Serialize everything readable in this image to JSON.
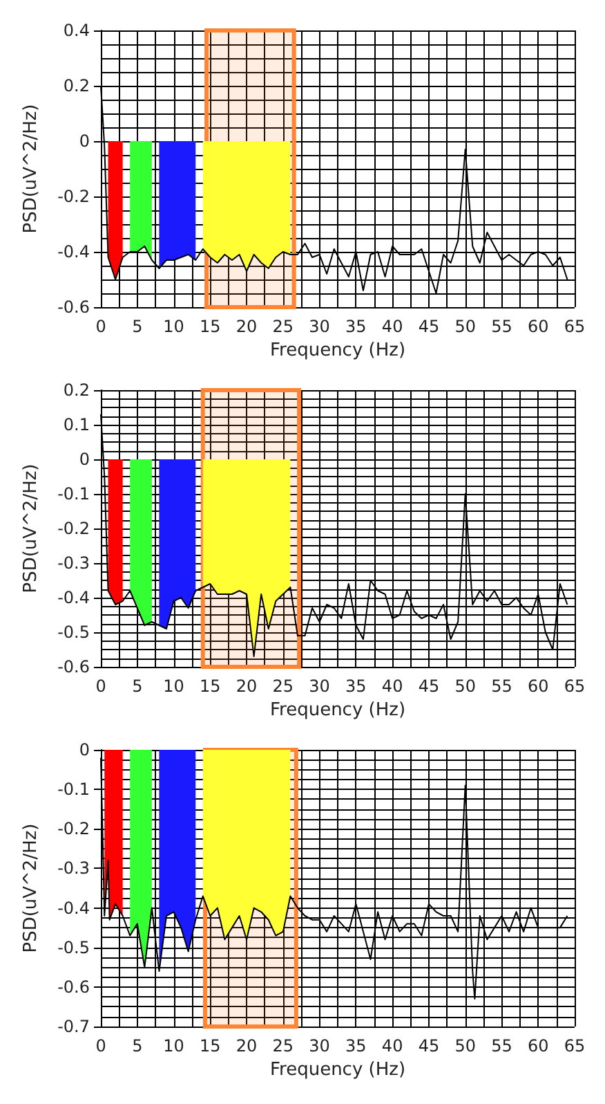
{
  "chart_data": [
    {
      "type": "line",
      "xlabel": "Frequency (Hz)",
      "ylabel": "PSD(uV^2/Hz)",
      "xlim": [
        0,
        65
      ],
      "xticks": [
        0,
        5,
        10,
        15,
        20,
        25,
        30,
        35,
        40,
        45,
        50,
        55,
        60,
        65
      ],
      "ylim": [
        -0.6,
        0.4
      ],
      "yticks": [
        -0.6,
        -0.4,
        -0.2,
        0,
        0.2,
        0.4
      ],
      "grid": true,
      "bands": [
        {
          "axis": "x",
          "from": 14.5,
          "to": 26.5,
          "color": "#ff8533"
        }
      ],
      "series": [
        {
          "type": "area",
          "color": "#ff0000",
          "x": [
            1,
            2,
            3
          ],
          "values": [
            -0.42,
            -0.5,
            -0.42
          ]
        },
        {
          "type": "area",
          "color": "#33ff33",
          "x": [
            4,
            5,
            6,
            7
          ],
          "values": [
            -0.4,
            -0.4,
            -0.38,
            -0.43
          ]
        },
        {
          "type": "area",
          "color": "#1a1aff",
          "x": [
            8,
            9,
            10,
            11,
            12,
            13
          ],
          "values": [
            -0.46,
            -0.43,
            -0.43,
            -0.42,
            -0.41,
            -0.43
          ]
        },
        {
          "type": "area",
          "color": "#ffff33",
          "x": [
            14,
            15,
            16,
            17,
            18,
            19,
            20,
            21,
            22,
            23,
            24,
            25,
            26
          ],
          "values": [
            -0.39,
            -0.42,
            -0.44,
            -0.41,
            -0.43,
            -0.41,
            -0.47,
            -0.41,
            -0.44,
            -0.46,
            -0.42,
            -0.4,
            -0.41
          ]
        },
        {
          "color": "#000000",
          "x": [
            0,
            0.5,
            1,
            2,
            3,
            4,
            5,
            6,
            7,
            8,
            9,
            10,
            11,
            12,
            13,
            14,
            15,
            16,
            17,
            18,
            19,
            20,
            21,
            22,
            23,
            24,
            25,
            26,
            27,
            28,
            29,
            30,
            31,
            32,
            33,
            34,
            35,
            36,
            37,
            38,
            39,
            40,
            41,
            42,
            43,
            44,
            45,
            46,
            47,
            48,
            49,
            50,
            51,
            52,
            53,
            54,
            55,
            56,
            57,
            58,
            59,
            60,
            61,
            62,
            63,
            64
          ],
          "values": [
            0.2,
            -0.02,
            -0.42,
            -0.5,
            -0.42,
            -0.4,
            -0.4,
            -0.38,
            -0.43,
            -0.46,
            -0.43,
            -0.43,
            -0.42,
            -0.41,
            -0.43,
            -0.39,
            -0.42,
            -0.44,
            -0.41,
            -0.43,
            -0.41,
            -0.47,
            -0.41,
            -0.44,
            -0.46,
            -0.42,
            -0.4,
            -0.41,
            -0.41,
            -0.37,
            -0.42,
            -0.41,
            -0.48,
            -0.39,
            -0.44,
            -0.49,
            -0.4,
            -0.54,
            -0.41,
            -0.4,
            -0.49,
            -0.38,
            -0.41,
            -0.41,
            -0.41,
            -0.39,
            -0.47,
            -0.55,
            -0.41,
            -0.44,
            -0.36,
            -0.03,
            -0.38,
            -0.44,
            -0.33,
            -0.38,
            -0.43,
            -0.41,
            -0.43,
            -0.45,
            -0.41,
            -0.4,
            -0.41,
            -0.45,
            -0.42,
            -0.5
          ]
        }
      ]
    },
    {
      "type": "line",
      "xlabel": "Frequency (Hz)",
      "ylabel": "PSD(uV^2/Hz)",
      "xlim": [
        0,
        65
      ],
      "xticks": [
        0,
        5,
        10,
        15,
        20,
        25,
        30,
        35,
        40,
        45,
        50,
        55,
        60,
        65
      ],
      "ylim": [
        -0.6,
        0.2
      ],
      "yticks": [
        -0.6,
        -0.5,
        -0.4,
        -0.3,
        -0.2,
        -0.1,
        0,
        0.1,
        0.2
      ],
      "grid": true,
      "bands": [
        {
          "axis": "x",
          "from": 14,
          "to": 27.2,
          "color": "#ff8533"
        }
      ],
      "series": [
        {
          "type": "area",
          "color": "#ff0000",
          "x": [
            1,
            2,
            3
          ],
          "values": [
            -0.38,
            -0.42,
            -0.41
          ]
        },
        {
          "type": "area",
          "color": "#33ff33",
          "x": [
            4,
            5,
            6,
            7
          ],
          "values": [
            -0.38,
            -0.43,
            -0.48,
            -0.47
          ]
        },
        {
          "type": "area",
          "color": "#1a1aff",
          "x": [
            8,
            9,
            10,
            11,
            12,
            13
          ],
          "values": [
            -0.48,
            -0.49,
            -0.41,
            -0.4,
            -0.43,
            -0.38
          ]
        },
        {
          "type": "area",
          "color": "#ffff33",
          "x": [
            14,
            15,
            16,
            17,
            18,
            19,
            20,
            21,
            22,
            23,
            24,
            25,
            26
          ],
          "values": [
            -0.37,
            -0.36,
            -0.39,
            -0.39,
            -0.39,
            -0.38,
            -0.39,
            -0.57,
            -0.39,
            -0.49,
            -0.41,
            -0.39,
            -0.37
          ]
        },
        {
          "color": "#000000",
          "x": [
            0,
            0.5,
            1,
            2,
            3,
            4,
            5,
            6,
            7,
            8,
            9,
            10,
            11,
            12,
            13,
            14,
            15,
            16,
            17,
            18,
            19,
            20,
            21,
            22,
            23,
            24,
            25,
            26,
            27,
            28,
            29,
            30,
            31,
            32,
            33,
            34,
            35,
            36,
            37,
            38,
            39,
            40,
            41,
            42,
            43,
            44,
            45,
            46,
            47,
            48,
            49,
            50,
            51,
            52,
            53,
            54,
            55,
            56,
            57,
            58,
            59,
            60,
            61,
            62,
            63,
            64
          ],
          "values": [
            0.13,
            -0.05,
            -0.38,
            -0.42,
            -0.41,
            -0.38,
            -0.43,
            -0.48,
            -0.47,
            -0.48,
            -0.49,
            -0.41,
            -0.4,
            -0.43,
            -0.38,
            -0.37,
            -0.36,
            -0.39,
            -0.39,
            -0.39,
            -0.38,
            -0.39,
            -0.57,
            -0.39,
            -0.49,
            -0.41,
            -0.39,
            -0.37,
            -0.51,
            -0.51,
            -0.43,
            -0.47,
            -0.42,
            -0.43,
            -0.46,
            -0.36,
            -0.48,
            -0.52,
            -0.35,
            -0.38,
            -0.39,
            -0.46,
            -0.45,
            -0.38,
            -0.44,
            -0.46,
            -0.45,
            -0.46,
            -0.42,
            -0.52,
            -0.47,
            -0.1,
            -0.42,
            -0.38,
            -0.41,
            -0.38,
            -0.42,
            -0.42,
            -0.4,
            -0.43,
            -0.45,
            -0.39,
            -0.5,
            -0.55,
            -0.36,
            -0.42
          ]
        }
      ]
    },
    {
      "type": "line",
      "xlabel": "Frequency (Hz)",
      "ylabel": "PSD(uV^2/Hz)",
      "xlim": [
        0,
        65
      ],
      "xticks": [
        0,
        5,
        10,
        15,
        20,
        25,
        30,
        35,
        40,
        45,
        50,
        55,
        60,
        65
      ],
      "ylim": [
        -0.7,
        0
      ],
      "yticks": [
        -0.7,
        -0.6,
        -0.5,
        -0.4,
        -0.3,
        -0.2,
        -0.1,
        0
      ],
      "grid": true,
      "bands": [
        {
          "axis": "x",
          "from": 14.3,
          "to": 26.8,
          "color": "#ff8533"
        }
      ],
      "series": [
        {
          "type": "area",
          "color": "#ff0000",
          "x": [
            0.5,
            1,
            1.2,
            2,
            3
          ],
          "values": [
            -0.42,
            -0.28,
            -0.43,
            -0.39,
            -0.42
          ]
        },
        {
          "type": "area",
          "color": "#33ff33",
          "x": [
            4,
            5,
            6,
            7
          ],
          "values": [
            -0.47,
            -0.44,
            -0.55,
            -0.4
          ]
        },
        {
          "type": "area",
          "color": "#1a1aff",
          "x": [
            8,
            9,
            10,
            11,
            12,
            13
          ],
          "values": [
            -0.56,
            -0.42,
            -0.41,
            -0.45,
            -0.51,
            -0.43
          ]
        },
        {
          "type": "area",
          "color": "#ffff33",
          "x": [
            14,
            15,
            16,
            17,
            18,
            19,
            20,
            21,
            22,
            23,
            24,
            25,
            26
          ],
          "values": [
            -0.37,
            -0.42,
            -0.4,
            -0.48,
            -0.45,
            -0.42,
            -0.48,
            -0.4,
            -0.41,
            -0.43,
            -0.47,
            -0.46,
            -0.37
          ]
        },
        {
          "color": "#000000",
          "x": [
            0,
            0.5,
            1,
            1.2,
            2,
            3,
            4,
            5,
            6,
            7,
            8,
            9,
            10,
            11,
            12,
            13,
            14,
            15,
            16,
            17,
            18,
            19,
            20,
            21,
            22,
            23,
            24,
            25,
            26,
            27,
            28,
            29,
            30,
            31,
            32,
            33,
            34,
            35,
            36,
            37,
            38,
            39,
            40,
            41,
            42,
            43,
            44,
            45,
            46,
            47,
            48,
            49,
            50,
            51,
            51.3,
            52,
            53,
            54,
            55,
            56,
            57,
            58,
            59,
            60,
            61,
            62,
            63,
            64
          ],
          "values": [
            -0.02,
            -0.42,
            -0.28,
            -0.43,
            -0.39,
            -0.42,
            -0.47,
            -0.44,
            -0.55,
            -0.4,
            -0.56,
            -0.42,
            -0.41,
            -0.45,
            -0.51,
            -0.43,
            -0.37,
            -0.42,
            -0.4,
            -0.48,
            -0.45,
            -0.42,
            -0.48,
            -0.4,
            -0.41,
            -0.43,
            -0.47,
            -0.46,
            -0.37,
            -0.4,
            -0.42,
            -0.43,
            -0.43,
            -0.46,
            -0.42,
            -0.44,
            -0.46,
            -0.39,
            -0.46,
            -0.53,
            -0.41,
            -0.48,
            -0.42,
            -0.46,
            -0.44,
            -0.44,
            -0.47,
            -0.39,
            -0.41,
            -0.42,
            -0.42,
            -0.46,
            -0.09,
            -0.56,
            -0.63,
            -0.42,
            -0.48,
            -0.45,
            -0.42,
            -0.46,
            -0.41,
            -0.46,
            -0.4,
            -0.45,
            -0.45,
            -0.45,
            -0.45,
            -0.42
          ]
        }
      ]
    }
  ]
}
